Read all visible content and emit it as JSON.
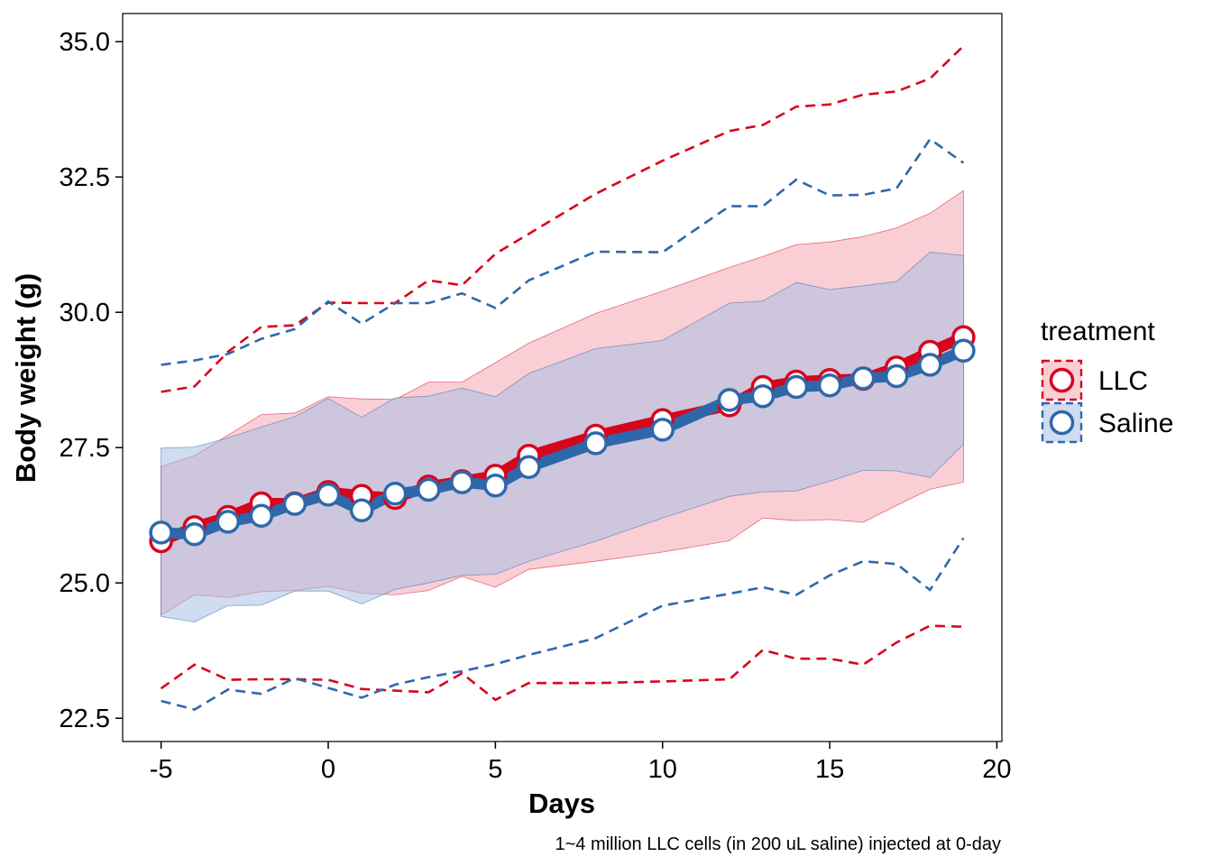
{
  "chart_data": {
    "type": "line",
    "xlabel": "Days",
    "ylabel": "Body weight (g)",
    "caption": "1~4 million LLC cells (in 200 uL saline) injected at 0-day",
    "xlim": [
      -6.15,
      20.15
    ],
    "ylim": [
      22.07,
      35.52
    ],
    "x_ticks": [
      -5,
      0,
      5,
      10,
      15,
      20
    ],
    "y_ticks": [
      22.5,
      25.0,
      27.5,
      30.0,
      32.5,
      35.0
    ],
    "x_tick_labels": [
      "-5",
      "0",
      "5",
      "10",
      "15",
      "20"
    ],
    "y_tick_labels": [
      "22.5",
      "25.0",
      "27.5",
      "30.0",
      "32.5",
      "35.0"
    ],
    "grid": false,
    "legend": {
      "title": "treatment",
      "position": "right"
    },
    "x": [
      -5,
      -4,
      -3,
      -2,
      -1,
      0,
      1,
      2,
      3,
      4,
      5,
      6,
      8,
      10,
      12,
      13,
      14,
      15,
      16,
      17,
      18,
      19
    ],
    "series": [
      {
        "name": "LLC",
        "color": "#d7051e",
        "fill": "#f4a6b0",
        "mean": [
          25.77,
          26.03,
          26.22,
          26.47,
          26.47,
          26.68,
          26.61,
          26.57,
          26.78,
          26.88,
          26.98,
          27.35,
          27.72,
          28.01,
          28.28,
          28.62,
          28.72,
          28.75,
          28.77,
          28.98,
          29.27,
          29.54
        ],
        "ribbon_lo": [
          24.4,
          24.78,
          24.73,
          24.84,
          24.86,
          24.94,
          24.81,
          24.78,
          24.86,
          25.12,
          24.92,
          25.25,
          25.4,
          25.57,
          25.78,
          26.2,
          26.15,
          26.17,
          26.12,
          26.43,
          26.73,
          26.86
        ],
        "ribbon_hi": [
          27.15,
          27.35,
          27.73,
          28.11,
          28.14,
          28.44,
          28.4,
          28.39,
          28.71,
          28.71,
          29.07,
          29.43,
          29.98,
          30.39,
          30.83,
          31.03,
          31.25,
          31.3,
          31.4,
          31.56,
          31.83,
          32.25
        ],
        "lower": [
          23.05,
          23.49,
          23.21,
          23.22,
          23.22,
          23.21,
          23.04,
          23.01,
          22.98,
          23.33,
          22.84,
          23.15,
          23.15,
          23.18,
          23.22,
          23.76,
          23.6,
          23.6,
          23.49,
          23.9,
          24.21,
          24.19
        ],
        "upper": [
          28.53,
          28.63,
          29.27,
          29.73,
          29.76,
          30.18,
          30.17,
          30.17,
          30.59,
          30.5,
          31.08,
          31.45,
          32.19,
          32.8,
          33.35,
          33.46,
          33.8,
          33.84,
          34.02,
          34.08,
          34.32,
          34.92
        ]
      },
      {
        "name": "Saline",
        "color": "#2e68ab",
        "fill": "#a9c0e2",
        "mean": [
          25.93,
          25.9,
          26.13,
          26.24,
          26.46,
          26.63,
          26.34,
          26.65,
          26.72,
          26.86,
          26.8,
          27.14,
          27.58,
          27.83,
          28.38,
          28.45,
          28.62,
          28.65,
          28.78,
          28.82,
          29.03,
          29.29
        ],
        "ribbon_lo": [
          24.38,
          24.28,
          24.58,
          24.59,
          24.85,
          24.85,
          24.61,
          24.88,
          25.0,
          25.14,
          25.16,
          25.4,
          25.77,
          26.2,
          26.6,
          26.68,
          26.7,
          26.88,
          27.08,
          27.07,
          26.95,
          27.56
        ],
        "ribbon_hi": [
          27.49,
          27.51,
          27.68,
          27.88,
          28.07,
          28.41,
          28.06,
          28.42,
          28.45,
          28.6,
          28.44,
          28.87,
          29.33,
          29.48,
          30.17,
          30.21,
          30.55,
          30.42,
          30.49,
          30.57,
          31.11,
          31.05
        ],
        "lower": [
          22.82,
          22.66,
          23.03,
          22.95,
          23.24,
          23.06,
          22.88,
          23.12,
          23.26,
          23.37,
          23.5,
          23.67,
          23.98,
          24.58,
          24.8,
          24.92,
          24.78,
          25.14,
          25.4,
          25.35,
          24.87,
          25.83
        ],
        "upper": [
          29.03,
          29.11,
          29.23,
          29.51,
          29.69,
          30.2,
          29.79,
          30.17,
          30.17,
          30.35,
          30.08,
          30.59,
          31.12,
          31.11,
          31.96,
          31.96,
          32.45,
          32.16,
          32.17,
          32.29,
          33.2,
          32.76
        ]
      }
    ]
  }
}
